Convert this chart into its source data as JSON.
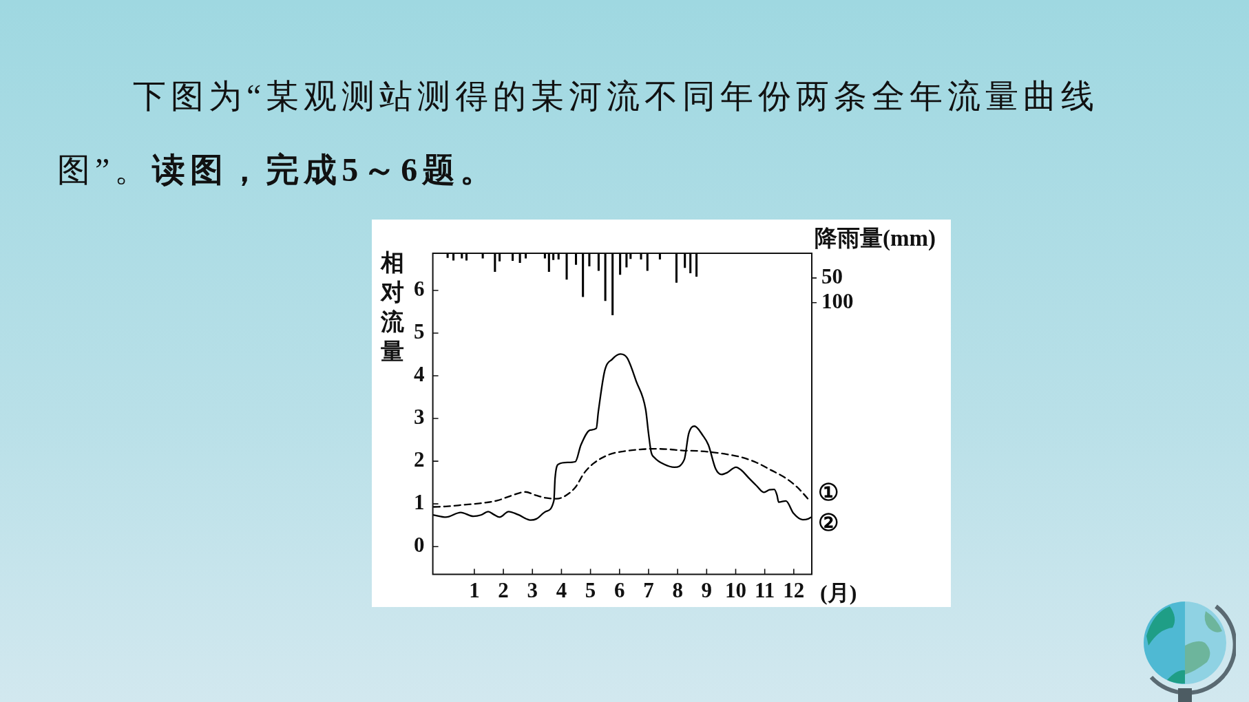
{
  "chart_data": {
    "type": "line",
    "title": "下图为“某观测站测得的某河流不同年份两条全年流量曲线图”。",
    "subtitle": "读图，完成5～6题。",
    "xlabel": "(月)",
    "ylabel": "相对流量",
    "y2label": "降雨量(mm)",
    "xlim": [
      -0.43,
      12.62
    ],
    "xticks": [
      1,
      2,
      3,
      4,
      5,
      6,
      7,
      8,
      9,
      10,
      11,
      12
    ],
    "ylim": [
      -0.65,
      6.87
    ],
    "yticks": [
      0,
      1,
      2,
      3,
      4,
      5,
      6
    ],
    "y2lim": [
      650,
      0
    ],
    "y2ticks": [
      50,
      100
    ],
    "marker": "none",
    "series": [
      {
        "type": "bar",
        "axis": "y2",
        "color": "#000000",
        "x": [
          0.08,
          0.28,
          0.57,
          0.73,
          1.29,
          1.71,
          1.87,
          2.32,
          2.57,
          2.77,
          3.43,
          3.57,
          3.72,
          3.9,
          4.18,
          4.5,
          4.74,
          4.96,
          5.28,
          5.51,
          5.76,
          6.02,
          6.24,
          6.38,
          6.74,
          6.96,
          7.39,
          7.96,
          8.25,
          8.44,
          8.65
        ],
        "values": [
          9,
          14,
          10,
          14,
          10,
          37,
          16,
          15,
          19,
          10,
          10,
          37,
          13,
          12,
          53,
          23,
          88,
          26,
          35,
          96,
          125,
          43,
          28,
          11,
          12,
          35,
          12,
          59,
          29,
          40,
          47
        ]
      },
      {
        "name": "①",
        "color": "#000000",
        "line_style": "dashed",
        "x": [
          -0.4,
          0.02,
          0.66,
          1.29,
          1.8,
          2.18,
          2.57,
          2.76,
          3.08,
          3.46,
          3.84,
          4.16,
          4.48,
          4.79,
          5.11,
          5.62,
          6.13,
          6.64,
          7.15,
          7.66,
          8.17,
          8.68,
          9.19,
          9.7,
          10.21,
          10.71,
          11.22,
          11.73,
          12.12,
          12.37,
          12.56
        ],
        "values": [
          0.93,
          0.94,
          0.98,
          1.02,
          1.08,
          1.17,
          1.26,
          1.28,
          1.21,
          1.14,
          1.12,
          1.2,
          1.39,
          1.73,
          1.95,
          2.15,
          2.23,
          2.27,
          2.29,
          2.28,
          2.25,
          2.24,
          2.21,
          2.16,
          2.09,
          1.97,
          1.79,
          1.6,
          1.39,
          1.21,
          1.06
        ]
      },
      {
        "name": "②",
        "color": "#000000",
        "line_style": "solid",
        "x": [
          -0.4,
          0.02,
          0.53,
          0.97,
          1.23,
          1.48,
          1.67,
          1.87,
          2.18,
          2.5,
          2.95,
          3.14,
          3.46,
          3.74,
          3.78,
          3.9,
          4.22,
          4.48,
          4.67,
          4.99,
          5.2,
          5.27,
          5.49,
          5.75,
          6.03,
          6.26,
          6.58,
          6.9,
          7.0,
          7.09,
          7.21,
          7.53,
          7.89,
          8.23,
          8.38,
          8.58,
          8.87,
          9.06,
          9.31,
          9.51,
          9.7,
          10.01,
          10.21,
          10.46,
          10.71,
          10.97,
          11.16,
          11.33,
          11.42,
          11.48,
          11.73,
          11.99,
          12.31,
          12.5,
          12.6
        ],
        "values": [
          0.74,
          0.69,
          0.8,
          0.71,
          0.74,
          0.82,
          0.75,
          0.69,
          0.82,
          0.75,
          0.62,
          0.65,
          0.82,
          1.08,
          1.6,
          1.93,
          1.97,
          1.99,
          2.38,
          2.73,
          2.77,
          3.16,
          4.12,
          4.39,
          4.51,
          4.42,
          3.86,
          3.21,
          2.64,
          2.21,
          2.08,
          1.93,
          1.86,
          2.04,
          2.64,
          2.82,
          2.6,
          2.38,
          1.82,
          1.69,
          1.73,
          1.86,
          1.78,
          1.6,
          1.43,
          1.27,
          1.33,
          1.34,
          1.21,
          1.04,
          1.07,
          0.78,
          0.63,
          0.65,
          0.69
        ]
      }
    ]
  }
}
